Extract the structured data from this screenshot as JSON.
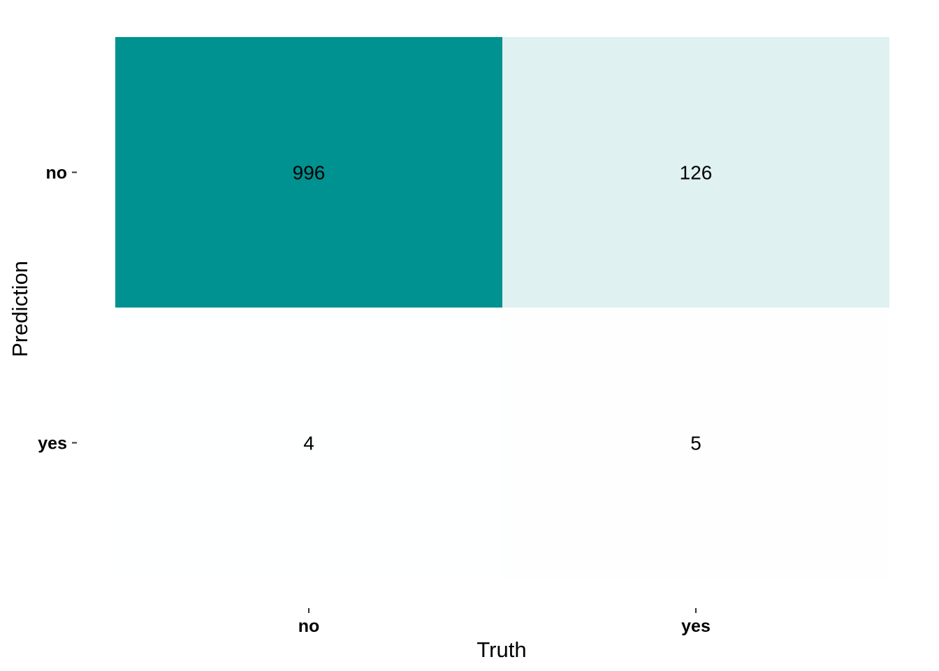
{
  "chart_data": {
    "type": "heatmap",
    "xlabel": "Truth",
    "ylabel": "Prediction",
    "x_categories": [
      "no",
      "yes"
    ],
    "y_categories": [
      "no",
      "yes"
    ],
    "cells": [
      {
        "prediction": "no",
        "truth": "no",
        "value": 996
      },
      {
        "prediction": "no",
        "truth": "yes",
        "value": 126
      },
      {
        "prediction": "yes",
        "truth": "no",
        "value": 4
      },
      {
        "prediction": "yes",
        "truth": "yes",
        "value": 5
      }
    ],
    "color_low": "#ffffff",
    "color_high": "#009191",
    "grid": false,
    "legend": "none"
  }
}
